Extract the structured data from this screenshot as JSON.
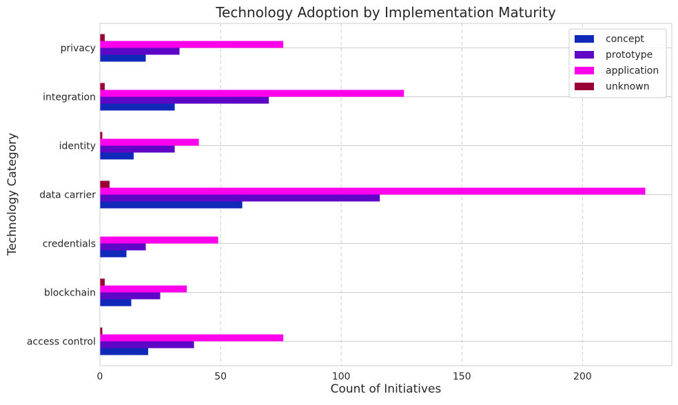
{
  "chart_data": {
    "type": "bar",
    "orientation": "horizontal",
    "title": "Technology Adoption by Implementation Maturity",
    "xlabel": "Count of Initiatives",
    "ylabel": "Technology Category",
    "categories": [
      "access control",
      "blockchain",
      "credentials",
      "data carrier",
      "identity",
      "integration",
      "privacy"
    ],
    "series": [
      {
        "name": "concept",
        "color": "#1029B8",
        "values": [
          20,
          13,
          11,
          59,
          14,
          31,
          19
        ]
      },
      {
        "name": "prototype",
        "color": "#5E07C7",
        "values": [
          39,
          25,
          19,
          116,
          31,
          70,
          33
        ]
      },
      {
        "name": "application",
        "color": "#FF00EC",
        "values": [
          76,
          36,
          49,
          226,
          41,
          126,
          76
        ]
      },
      {
        "name": "unknown",
        "color": "#990033",
        "values": [
          1,
          2,
          0,
          4,
          1,
          2,
          2
        ]
      }
    ],
    "xlim": [
      0,
      237
    ],
    "xticks": [
      0,
      50,
      100,
      150,
      200
    ],
    "grid": {
      "x": "dashed",
      "y": "solid"
    },
    "legend_position": "top-right"
  }
}
